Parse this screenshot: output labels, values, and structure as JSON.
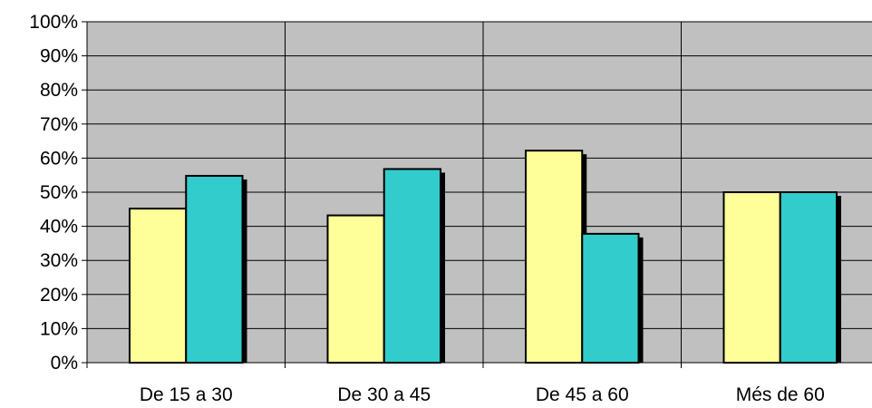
{
  "chart_data": {
    "type": "bar",
    "title": "",
    "xlabel": "",
    "ylabel": "",
    "ylim": [
      0,
      100
    ],
    "y_ticks": [
      "0%",
      "10%",
      "20%",
      "30%",
      "40%",
      "50%",
      "60%",
      "70%",
      "80%",
      "90%",
      "100%"
    ],
    "categories": [
      "De 15 a 30",
      "De 30 a 45",
      "De 45 a 60",
      "Més de 60"
    ],
    "series": [
      {
        "color": "#ffff99",
        "values": [
          45.2,
          43.2,
          62.2,
          50.0
        ]
      },
      {
        "color": "#33cccc",
        "values": [
          54.8,
          56.8,
          37.8,
          50.0
        ]
      }
    ],
    "plot_background": "#c0c0c0",
    "grid": true,
    "legend": "none"
  }
}
